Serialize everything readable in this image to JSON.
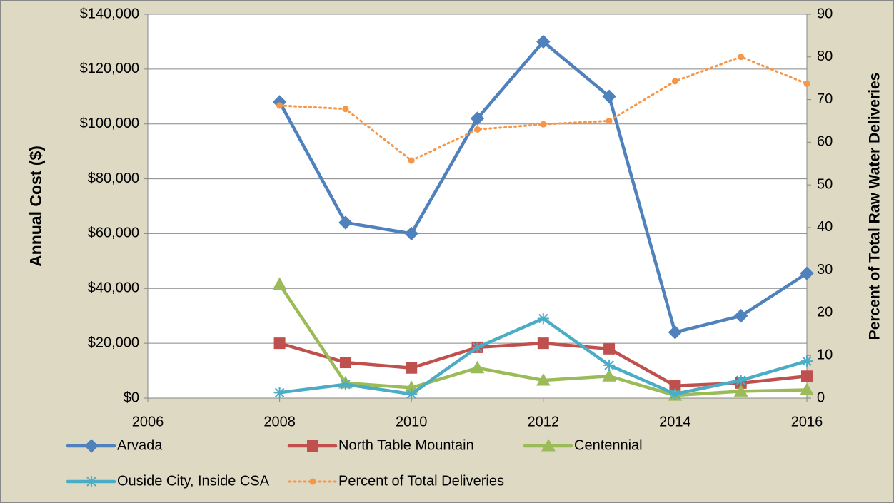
{
  "chart_data": {
    "type": "line",
    "y_label": "Annual Cost ($)",
    "y2_label": "Percent of Total Raw Water Deliveries",
    "x": [
      2008,
      2009,
      2010,
      2011,
      2012,
      2013,
      2014,
      2015,
      2016
    ],
    "xlim": [
      2006,
      2016
    ],
    "xticks": [
      2006,
      2008,
      2010,
      2012,
      2014,
      2016
    ],
    "ylim": [
      0,
      140000
    ],
    "yticks": [
      {
        "value": 0,
        "label": "$0"
      },
      {
        "value": 20000,
        "label": "$20,000"
      },
      {
        "value": 40000,
        "label": "$40,000"
      },
      {
        "value": 60000,
        "label": "$60,000"
      },
      {
        "value": 80000,
        "label": "$80,000"
      },
      {
        "value": 100000,
        "label": "$100,000"
      },
      {
        "value": 120000,
        "label": "$120,000"
      },
      {
        "value": 140000,
        "label": "$140,000"
      }
    ],
    "y2lim": [
      0,
      90
    ],
    "y2ticks": [
      0,
      10,
      20,
      30,
      40,
      50,
      60,
      70,
      80,
      90
    ],
    "grid": true,
    "legend": "bottom",
    "series": [
      {
        "name": "Arvada",
        "color": "#4f81bd",
        "marker": "diamond",
        "values": [
          108000,
          64000,
          60000,
          102000,
          130000,
          110000,
          24000,
          30000,
          45500
        ]
      },
      {
        "name": "North Table Mountain",
        "color": "#c0504d",
        "marker": "square",
        "values": [
          20000,
          13000,
          11000,
          18500,
          20000,
          18000,
          4500,
          5500,
          8000
        ]
      },
      {
        "name": "Centennial",
        "color": "#9bbb59",
        "marker": "triangle",
        "values": [
          41500,
          5500,
          3800,
          11000,
          6500,
          8000,
          1000,
          2500,
          3000
        ]
      },
      {
        "name": "Ouside City, Inside CSA",
        "color": "#4bacc6",
        "marker": "star",
        "values": [
          2000,
          5000,
          1500,
          18500,
          29000,
          12000,
          1500,
          6500,
          13500
        ]
      },
      {
        "name": "Percent of Total Deliveries",
        "color": "#f79646",
        "marker": "circle",
        "line_style": "dotted",
        "axis": "y2",
        "values": [
          68.6,
          67.8,
          55.7,
          63,
          64.2,
          65,
          74.3,
          80,
          73.7
        ]
      }
    ]
  }
}
